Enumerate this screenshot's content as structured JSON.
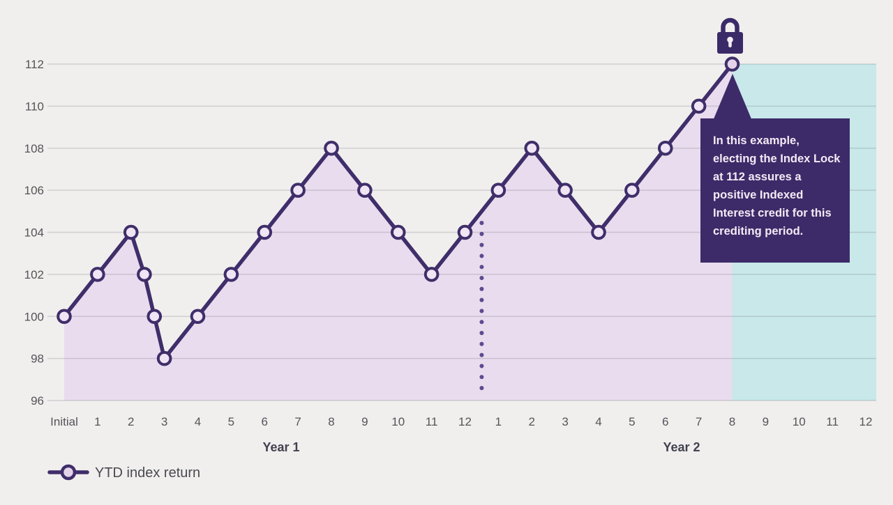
{
  "legend": {
    "label": "YTD index return"
  },
  "annotation": {
    "lines": [
      "In this example,",
      "electing the Index Lock",
      "at 112 assures a",
      "positive Indexed",
      "Interest credit for this",
      "crediting period."
    ]
  },
  "chart_data": {
    "type": "line",
    "series": [
      {
        "name": "YTD index return",
        "points": [
          {
            "t": 0,
            "label": "Initial",
            "value": 100
          },
          {
            "t": 1,
            "value": 102
          },
          {
            "t": 2,
            "value": 104
          },
          {
            "t": 2.4,
            "value": 102
          },
          {
            "t": 2.7,
            "value": 100
          },
          {
            "t": 3,
            "value": 98
          },
          {
            "t": 4,
            "value": 100
          },
          {
            "t": 5,
            "value": 102
          },
          {
            "t": 6,
            "value": 104
          },
          {
            "t": 7,
            "value": 106
          },
          {
            "t": 8,
            "value": 108
          },
          {
            "t": 9,
            "value": 106
          },
          {
            "t": 10,
            "value": 104
          },
          {
            "t": 11,
            "value": 102
          },
          {
            "t": 12,
            "value": 104
          },
          {
            "t": 13,
            "value": 106
          },
          {
            "t": 14,
            "value": 108
          },
          {
            "t": 15,
            "value": 106
          },
          {
            "t": 16,
            "value": 104
          },
          {
            "t": 17,
            "value": 106
          },
          {
            "t": 18,
            "value": 108
          },
          {
            "t": 19,
            "value": 110
          },
          {
            "t": 20,
            "value": 112
          }
        ]
      }
    ],
    "y_axis": {
      "min": 96,
      "max": 112,
      "step": 2,
      "ticks": [
        "96",
        "98",
        "100",
        "102",
        "104",
        "106",
        "108",
        "110",
        "112"
      ]
    },
    "x_axis": {
      "year1": {
        "label": "Year 1",
        "ticks": [
          "Initial",
          "1",
          "2",
          "3",
          "4",
          "5",
          "6",
          "7",
          "8",
          "9",
          "10",
          "11",
          "12"
        ]
      },
      "year2": {
        "label": "Year 2",
        "ticks": [
          "1",
          "2",
          "3",
          "4",
          "5",
          "6",
          "7",
          "8",
          "9",
          "10",
          "11",
          "12"
        ]
      }
    },
    "divider_t": 12.5,
    "lock": {
      "value": 112,
      "at_t": 20
    },
    "shaded_regions": [
      {
        "name": "ytd-return-area",
        "from_t": 0,
        "to_t": 20,
        "color_key": "area_ytd"
      },
      {
        "name": "locked-period-area",
        "from_t": 20,
        "to_t": 24,
        "color_key": "area_locked"
      }
    ],
    "grid": true,
    "legend_position": "bottom-left"
  },
  "colors": {
    "background": "#f0efed",
    "gridline": "rgba(95,95,105,0.22)",
    "line": "#3f2e6a",
    "marker_fill": "#efe5f4",
    "marker_fill_accent": "#e5d3ea",
    "area_ytd": "#e8dcee",
    "area_locked": "#c8e8e9",
    "callout_bg": "#3c2b68",
    "callout_text": "#f4eaf6",
    "lock": "#3b2a68",
    "lock_keyhole": "#f2eef4",
    "divider": "#5c4a91",
    "axis_text": "#54545a",
    "year_text": "#434050",
    "legend_text": "#4a4a52"
  }
}
